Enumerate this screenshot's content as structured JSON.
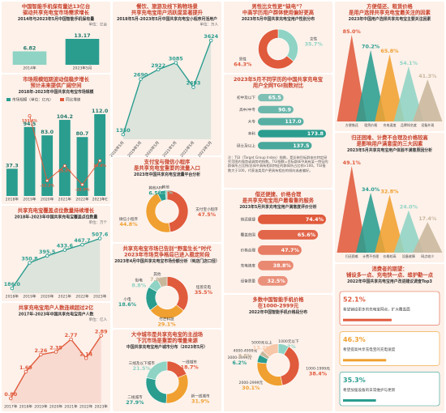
{
  "chart_data": [
    {
      "type": "bar",
      "title": [
        "中国智能手机保有量达13亿台",
        "驱动共享充电宝市场需求增长"
      ],
      "subtitle": "2014年与2023年5月中国智能手机保有量",
      "unit": "单位：亿台",
      "categories": [
        "2014年",
        "2023年5月"
      ],
      "series": [
        {
          "colors": [
            "#8fd3c4",
            "#2a9d8f"
          ],
          "values": [
            6.82,
            13.17
          ]
        }
      ]
    },
    {
      "type": "bar",
      "title": [
        "市场规模短期波动但稳步增长",
        "预计未来提供广阔空间"
      ],
      "subtitle": "2018年-2023年中国共享充电宝市场规模",
      "categories": [
        "2018年",
        "2019年",
        "2020年",
        "2021年",
        "2022年",
        "2023年E"
      ],
      "series": [
        {
          "name": "市场规模（单位：亿元）",
          "color": "#2a9d8f",
          "values": [
            37.3,
            94.5,
            83.0,
            104.2,
            80.7,
            112.0
          ],
          "value_labels": [
            "37.3",
            "94.5",
            "83.0",
            "104.2",
            "80.7",
            "112.0"
          ]
        },
        {
          "name": "同比增速",
          "color": "#e05a3c",
          "axis": "y2",
          "values": [
            null,
            153.4,
            -12.2,
            25.5,
            -22.5,
            38.8
          ],
          "value_labels": [
            null,
            "153.4%",
            "-12.2%",
            "25.5%",
            "-22.5%",
            "38.8%"
          ]
        }
      ]
    },
    {
      "type": "line",
      "title": [
        "共享充电宝覆盖点位数量持续增长"
      ],
      "subtitle": "2018年-2023年中国共享充电宝覆盖点位数量",
      "unit": "单位：万个",
      "categories": [
        "2018年",
        "2019年",
        "2020年",
        "2021年",
        "2022年",
        "2023年"
      ],
      "color": "#2a9d8f",
      "values": [
        186.0,
        350.8,
        395.5,
        433.6,
        467.7,
        507.6
      ],
      "value_labels": [
        "186.0",
        "350.8",
        "395.5",
        "433.6",
        "467.7",
        "507.6"
      ]
    },
    {
      "type": "line",
      "title": [
        "共享充电宝用户人数连续超过2亿"
      ],
      "subtitle": "2017年-2023年中国共享充电宝用户人数",
      "unit": "单位：亿人",
      "categories": [
        "2017年",
        "2018年",
        "2019年",
        "2020年",
        "2021年",
        "2022年",
        "2023年"
      ],
      "color": "#e05a3c",
      "values": [
        0.8,
        1.69,
        2.26,
        2.35,
        2.77,
        2.14,
        2.89
      ],
      "value_labels": [
        "0.80",
        "1.69",
        "2.26",
        "2.35",
        "2.77",
        "2.14",
        "2.89"
      ]
    },
    {
      "type": "line",
      "title": [
        "餐饮、旅游及线下购物场景",
        "共享充电宝用户活跃度显著提升"
      ],
      "subtitle": "2018年5月-2023年5月中国共享充电宝小程序月活用户",
      "unit": "单位：万人",
      "categories": [
        "2018年5月",
        "2019年5月",
        "2020年5月",
        "2021年5月",
        "2022年5月",
        "2023年5月"
      ],
      "color": "#2a9d8f",
      "values": [
        1350,
        2690,
        2922,
        3085,
        2493,
        3624
      ]
    },
    {
      "type": "donut",
      "title": [
        "支付宝与微信小程序",
        "是共享充电宝重要的流量入口"
      ],
      "subtitle": "2023年中国共享充电宝流量平台分析",
      "categories": [
        "支付宝小程序",
        "微信小程序",
        "其他APP",
        "其他"
      ],
      "values": [
        47.5,
        44.8,
        6.5,
        1.2
      ],
      "value_labels": [
        "47.5%",
        "44.8%",
        "6.5%",
        "1.2%"
      ],
      "colors": [
        "#e05a3c",
        "#f0a030",
        "#2a9d8f",
        "#8fd3c4"
      ]
    },
    {
      "type": "donut",
      "title": [
        "共享充电宝市场已告别“野蛮生长”时代",
        "2023年市场竞争格局已进入稳定阶段"
      ],
      "subtitle": "2023年4月中国共享充电宝市场份额分析（到店门店口径）",
      "categories": [
        "怪兽充电",
        "竹芒科技",
        "小电",
        "街电",
        "其他"
      ],
      "values": [
        35.5,
        29.1,
        18.6,
        8.8,
        7.8
      ],
      "value_labels": [
        "35.5%",
        "29.1%",
        "18.6%",
        "8.8%",
        "7.8%"
      ],
      "colors": [
        "#e05a3c",
        "#f0a030",
        "#2a9d8f",
        "#8fd3c4",
        "#c9b79c"
      ]
    },
    {
      "type": "donut",
      "title": [
        "大中城市是共享充电宝的主战场",
        "下沉市场是重要的增量来源"
      ],
      "subtitle": "中国共享充电宝用户城市分布（2023年5月）",
      "categories": [
        "一线城市",
        "新一线城市",
        "二线城市",
        "三线及以下城市"
      ],
      "values": [
        18.7,
        31.9,
        27.9,
        21.5
      ],
      "value_labels": [
        "18.7%",
        "31.9%",
        "27.9%",
        "21.5%"
      ],
      "colors": [
        "#e05a3c",
        "#f0a030",
        "#2a9d8f",
        "#8fd3c4"
      ]
    },
    {
      "type": "donut",
      "title": [
        "男性比女性更“缺电”？",
        "中高学历用户群体使用偏好更高"
      ],
      "subtitle": "2023年5月中国共享充电宝用户性别分布",
      "categories": [
        "女性",
        "男性"
      ],
      "values": [
        35.7,
        64.3
      ],
      "value_labels": [
        "35.7%",
        "64.3%"
      ],
      "colors": [
        "#8fd3c4",
        "#e05a3c"
      ]
    },
    {
      "type": "hbar",
      "title": [
        "2023年5月不同学历的中国共享充电宝",
        "用户全网TGI指数对比"
      ],
      "categories": [
        "初中及以下",
        "高中/中专",
        "大专",
        "本科",
        "硕士及以上"
      ],
      "values": [
        65.5,
        90.9,
        117.0,
        173.8,
        137.5
      ],
      "value_labels": [
        "65.5",
        "90.9",
        "117.0",
        "173.8",
        "137.5"
      ],
      "color": "#2a9d8f",
      "note": "注：TGI（Target Group Index）指数，是反映目标群体在特定研究范围内强势或弱势的指数。TGI指数=目标群体中具有某一特征的群体所占比例/总体中具有相同特征的群体所占比例×100。TGI指数大于100，代表该类用户更具有相应的倾向或者偏好。"
    },
    {
      "type": "hbar",
      "title": [
        "借还便捷、价格合理",
        "是共享充电宝用户最看重的服务"
      ],
      "subtitle": "2023年5月共享充电宝用户满意度评价分析",
      "categories": [
        "借还便捷",
        "覆盖范围",
        "价格合理",
        "充电速度",
        "设备质量"
      ],
      "values": [
        74.4,
        65.6,
        47.7,
        38.8,
        32.5
      ],
      "value_labels": [
        "74.4%",
        "65.6%",
        "47.7%",
        "38.8%",
        "32.5%"
      ],
      "color": "#e05a3c"
    },
    {
      "type": "donut",
      "title": [
        "多数中国智能手机价格",
        "在1000-2999元"
      ],
      "subtitle": "2022年中国智能手机价格段分布",
      "categories": [
        "1000元以下",
        "1000-1999元",
        "2000-2999元",
        "3000-3999元",
        "4000-4999元",
        "5000元以上"
      ],
      "values": [
        8.3,
        38.4,
        30.1,
        6.2,
        3.8,
        13.2
      ],
      "value_labels": [
        "8.3%",
        "38.4%",
        "30.1%",
        "6.2%",
        "3.8%",
        "13.2%"
      ],
      "colors": [
        "#8fd3c4",
        "#e05a3c",
        "#f0a030",
        "#2a9d8f",
        "#c9b79c",
        "#f6c7a8"
      ]
    },
    {
      "type": "triangle",
      "title": [
        "方便借还、租赁价格",
        "是用户选择共享充电宝最关注的因素"
      ],
      "subtitle": "2023年中国用户选择共享充电宝主要关注因素",
      "categories": [
        "方便借还",
        "租赁价格",
        "充电速度",
        "品牌知名度",
        "设备外观"
      ],
      "values": [
        85.0,
        70.2,
        65.8,
        54.1,
        41.3
      ],
      "value_labels": [
        "85.0%",
        "70.2%",
        "65.8%",
        "54.1%",
        "41.3%"
      ],
      "colors": [
        "#e05a3c",
        "#2a9d8f",
        "#f0a030",
        "#8fd3c4",
        "#c9b79c"
      ]
    },
    {
      "type": "triangle",
      "title": [
        "归还困难、计费不合理及价格较高",
        "是影响用户满意度的三大因素"
      ],
      "subtitle": "2023年5月共享充电宝用户体验不满意原因分析",
      "categories": [
        "归还困难",
        "计费不合理",
        "价格较高",
        "设备故障",
        "网点较少"
      ],
      "values": [
        49.1,
        34.0,
        32.8,
        24.0,
        17.4
      ],
      "value_labels": [
        "49.1%",
        "34.0%",
        "32.8%",
        "24.0%",
        "17.4%"
      ],
      "colors": [
        "#e05a3c",
        "#2a9d8f",
        "#f0a030",
        "#8fd3c4",
        "#c9b79c"
      ]
    },
    {
      "type": "ranking",
      "title": [
        "消费者的期望：",
        "铺设多一点、充电快一点、维护勤一点"
      ],
      "subtitle": "2022年中国共享充电宝用户改进建议调查Top3",
      "categories": [
        "希望铺设更多的充电宝网点，扩大覆盖面",
        "希望提高共享充电宝的充电速度",
        "希望加强设备的日常维护与更新"
      ],
      "values": [
        52.1,
        46.3,
        35.3
      ],
      "value_labels": [
        "52.1%",
        "46.3%",
        "35.3%"
      ],
      "colors": [
        "#e05a3c",
        "#f0a030",
        "#2a9d8f"
      ]
    }
  ]
}
